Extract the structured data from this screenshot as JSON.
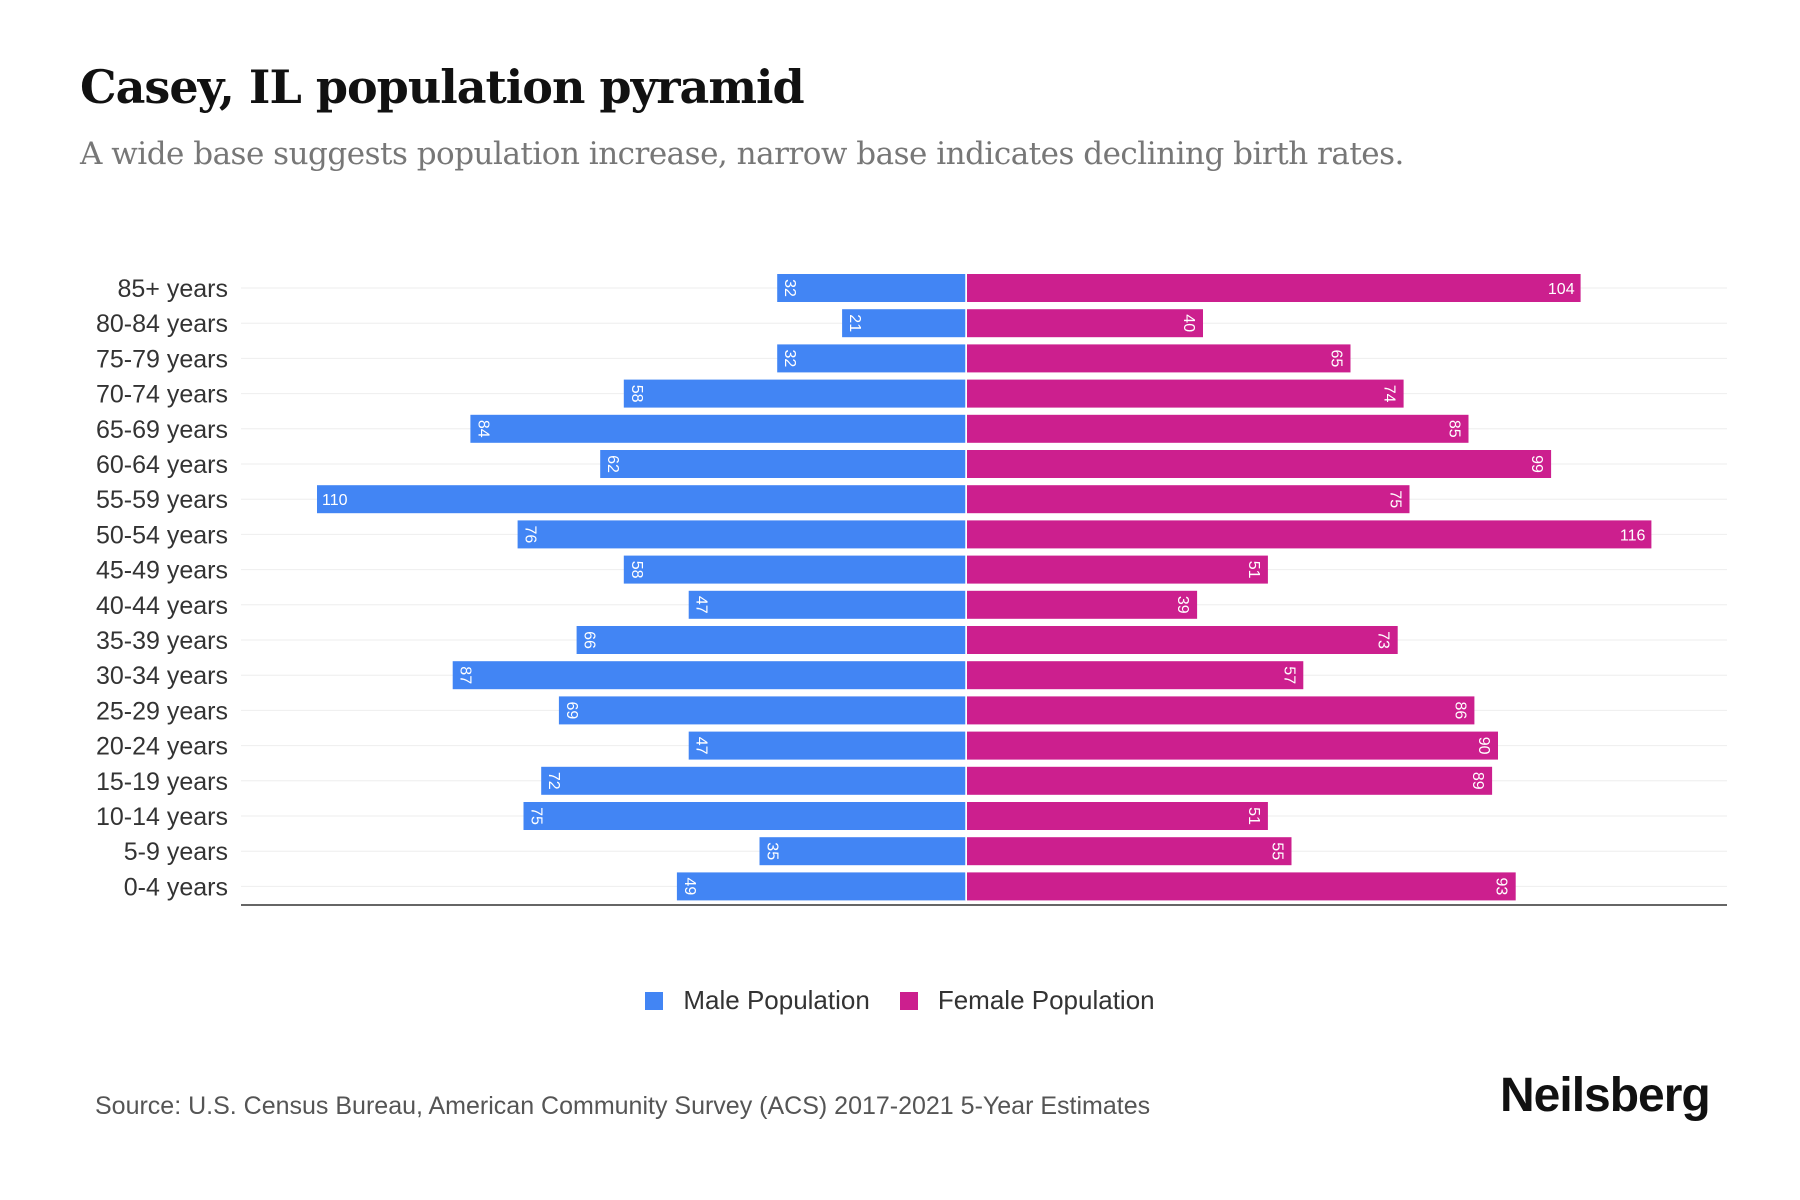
{
  "title": "Casey, IL population pyramid",
  "subtitle": "A wide base suggests population increase, narrow base indicates declining birth rates.",
  "source": "Source: U.S. Census Bureau, American Community Survey (ACS) 2017-2021 5-Year Estimates",
  "brand": "Neilsberg",
  "chart_data": {
    "type": "bar",
    "orientation": "horizontal-pyramid",
    "title": "Casey, IL population pyramid",
    "categories": [
      "85+ years",
      "80-84 years",
      "75-79 years",
      "70-74 years",
      "65-69 years",
      "60-64 years",
      "55-59 years",
      "50-54 years",
      "45-49 years",
      "40-44 years",
      "35-39 years",
      "30-34 years",
      "25-29 years",
      "20-24 years",
      "15-19 years",
      "10-14 years",
      "5-9 years",
      "0-4 years"
    ],
    "series": [
      {
        "name": "Male Population",
        "color": "#4285f4",
        "values": [
          32,
          21,
          32,
          58,
          84,
          62,
          110,
          76,
          58,
          47,
          66,
          87,
          69,
          47,
          72,
          75,
          35,
          49
        ]
      },
      {
        "name": "Female Population",
        "color": "#cc1f8e",
        "values": [
          104,
          40,
          65,
          74,
          85,
          99,
          75,
          116,
          51,
          39,
          73,
          57,
          86,
          90,
          89,
          51,
          55,
          93
        ]
      }
    ],
    "legend": "bottom-center",
    "grid": true
  }
}
